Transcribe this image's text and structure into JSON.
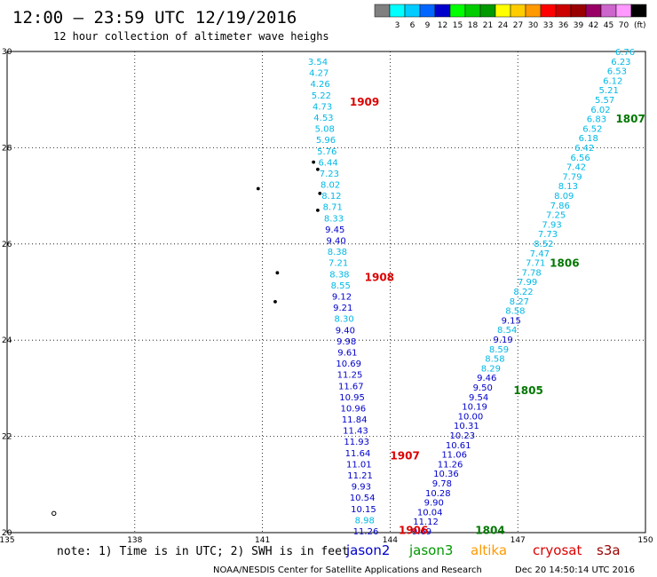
{
  "header": {
    "title": "12:00 – 23:59 UTC 12/19/2016",
    "subtitle": "12 hour collection of altimeter wave heighs"
  },
  "colorbar": {
    "unit": "(ft)",
    "swatches": [
      {
        "color": "#808080",
        "label": ""
      },
      {
        "color": "#00ffff",
        "label": "3"
      },
      {
        "color": "#00ccff",
        "label": "6"
      },
      {
        "color": "#0066ff",
        "label": "9"
      },
      {
        "color": "#0000cc",
        "label": "12"
      },
      {
        "color": "#00ff00",
        "label": "15"
      },
      {
        "color": "#00cc00",
        "label": "18"
      },
      {
        "color": "#009900",
        "label": "21"
      },
      {
        "color": "#ffff00",
        "label": "24"
      },
      {
        "color": "#ffcc00",
        "label": "27"
      },
      {
        "color": "#ff9900",
        "label": "30"
      },
      {
        "color": "#ff0000",
        "label": "33"
      },
      {
        "color": "#cc0000",
        "label": "36"
      },
      {
        "color": "#990000",
        "label": "39"
      },
      {
        "color": "#990066",
        "label": "42"
      },
      {
        "color": "#cc66cc",
        "label": "45"
      },
      {
        "color": "#ff99ff",
        "label": "70"
      },
      {
        "color": "#000000",
        "label": ""
      }
    ]
  },
  "map": {
    "lon_range": [
      135,
      150
    ],
    "lat_range": [
      20,
      30
    ],
    "grid": true,
    "x_tick_labels": [
      "135",
      "138",
      "141",
      "144",
      "147",
      "150"
    ],
    "y_tick_labels": [
      "20",
      "22",
      "24",
      "26",
      "28",
      "30"
    ],
    "pass_labels": [
      {
        "label": "1909",
        "color": "#dd0000",
        "lon": 143.05,
        "lat": 28.95
      },
      {
        "label": "1908",
        "color": "#dd0000",
        "lon": 143.4,
        "lat": 25.3
      },
      {
        "label": "1907",
        "color": "#dd0000",
        "lon": 144.0,
        "lat": 21.6
      },
      {
        "label": "1906",
        "color": "#dd0000",
        "lon": 144.2,
        "lat": 20.05
      },
      {
        "label": "1807",
        "color": "#007700",
        "lon": 149.3,
        "lat": 28.6
      },
      {
        "label": "1806",
        "color": "#007700",
        "lon": 147.75,
        "lat": 25.6
      },
      {
        "label": "1805",
        "color": "#007700",
        "lon": 146.9,
        "lat": 22.95
      },
      {
        "label": "1804",
        "color": "#007700",
        "lon": 146.0,
        "lat": 20.05
      }
    ],
    "tracks": [
      {
        "satellite": "jason2",
        "values": [
          "3.54",
          "4.27",
          "4.26",
          "5.22",
          "4.73",
          "4.53",
          "5.08",
          "5.96",
          "5.76",
          "6.44",
          "7.23",
          "8.02",
          "8.12",
          "8.71",
          "8.33",
          "9.45",
          "9.40",
          "8.38",
          "7.21",
          "8.38",
          "8.55",
          "9.12",
          "9.21",
          "8.30",
          "9.40",
          "9.98",
          "9.61",
          "10.69",
          "11.25",
          "11.67",
          "10.95",
          "10.96",
          "11.84",
          "11.43",
          "11.93",
          "11.64",
          "11.01",
          "11.21",
          "9.93",
          "10.54",
          "10.15",
          "8.98",
          "11.26"
        ]
      },
      {
        "satellite": "jason3",
        "values": [
          "9.69",
          "11.12",
          "10.04",
          "9.90",
          "10.28",
          "9.78",
          "10.36",
          "11.26",
          "11.06",
          "10.61",
          "10.23",
          "10.31",
          "10.00",
          "10.19",
          "9.54",
          "9.50",
          "9.46",
          "8.29",
          "8.58",
          "8.59",
          "9.19",
          "8.54",
          "9.15",
          "8.58",
          "8.27",
          "8.22",
          "7.99",
          "7.78",
          "7.71",
          "7.47",
          "8.52",
          "7.73",
          "7.93",
          "7.25",
          "7.86",
          "8.09",
          "8.13",
          "7.79",
          "7.42",
          "6.56",
          "6.42",
          "6.18",
          "6.52",
          "6.83",
          "6.02",
          "5.57",
          "5.21",
          "6.12",
          "6.53",
          "6.23",
          "6.76"
        ]
      }
    ],
    "island_markers": [
      {
        "lon": 142.2,
        "lat": 27.7
      },
      {
        "lon": 142.3,
        "lat": 27.55
      },
      {
        "lon": 140.9,
        "lat": 27.15
      },
      {
        "lon": 142.35,
        "lat": 27.05
      },
      {
        "lon": 142.3,
        "lat": 26.7
      },
      {
        "lon": 141.35,
        "lat": 25.4
      },
      {
        "lon": 141.3,
        "lat": 24.8
      },
      {
        "lon": 136.1,
        "lat": 20.4
      }
    ]
  },
  "note": "note: 1) Time is in UTC; 2) SWH is in feet",
  "legend": [
    {
      "name": "jason2",
      "color": "#0000cc"
    },
    {
      "name": "jason3",
      "color": "#009900"
    },
    {
      "name": "altika",
      "color": "#ff9900"
    },
    {
      "name": "cryosat",
      "color": "#dd0000"
    },
    {
      "name": "s3a",
      "color": "#990000"
    }
  ],
  "footer": {
    "credit": "NOAA/NESDIS Center for Satellite Applications and Research",
    "timestamp": "Dec 20 14:50:14 UTC 2016"
  }
}
